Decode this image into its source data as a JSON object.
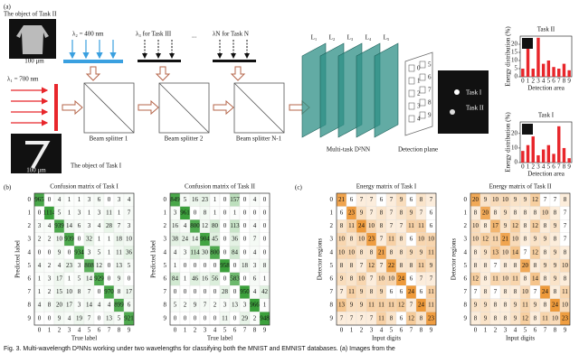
{
  "panel_a": {
    "label": "(a)",
    "object_task2": "The object of Task II",
    "scale2": "100 μm",
    "lambda2": "λ₂ = 400 nm",
    "lambda3": "λ₃ for Task III",
    "ellipsis": "...",
    "lambdaN": "λN for Task N",
    "lambda1": "λ₁ = 700 nm",
    "splitters": [
      "Beam splitter 1",
      "Beam splitter 2",
      "Beam splitter N-1"
    ],
    "object_task1": "The object of Task I",
    "scale1": "100 μm",
    "layers": [
      "L₁",
      "L₂",
      "L₃",
      "L₄",
      "L₅"
    ],
    "network": "Multi-task D²NN",
    "detection_plane": "Detection plane",
    "detector_numbers": [
      "0",
      "1",
      "2",
      "3",
      "4",
      "5",
      "6",
      "7",
      "8",
      "9"
    ],
    "output_labels": [
      "Task I",
      "Task II"
    ]
  },
  "panel_labels": [
    "(b)",
    "(c)"
  ],
  "chart_data": [
    {
      "type": "bar",
      "title": "Task II",
      "xlabel": "Detection area",
      "ylabel": "Energy distribution (%)",
      "categories": [
        "0",
        "1",
        "2",
        "3",
        "4",
        "5",
        "6",
        "7",
        "8",
        "9"
      ],
      "values": [
        5,
        20,
        5,
        24,
        8,
        10,
        6,
        5,
        8,
        4
      ],
      "color": "#e8262b",
      "ylim": [
        0,
        25
      ],
      "yticks": [
        0,
        5,
        10,
        15,
        20
      ]
    },
    {
      "type": "bar",
      "title": "Task I",
      "xlabel": "Detection area",
      "ylabel": "Energy distribution (%)",
      "categories": [
        "0",
        "1",
        "2",
        "3",
        "4",
        "5",
        "6",
        "7",
        "8",
        "9"
      ],
      "values": [
        8,
        12,
        18,
        5,
        9,
        12,
        6,
        25,
        10,
        3
      ],
      "color": "#e8262b",
      "ylim": [
        0,
        28
      ],
      "yticks": [
        0,
        10,
        20
      ]
    },
    {
      "type": "heatmap",
      "title": "Confusion matrix of Task I",
      "xlabel": "True label",
      "ylabel": "Predicted label",
      "categories": [
        "0",
        "1",
        "2",
        "3",
        "4",
        "5",
        "6",
        "7",
        "8",
        "9"
      ],
      "rows": [
        "0",
        "1",
        "2",
        "3",
        "4",
        "5",
        "6",
        "7",
        "8",
        "9"
      ],
      "color": "#3aa03a",
      "values": [
        [
          965,
          0,
          4,
          1,
          1,
          3,
          6,
          0,
          3,
          4
        ],
        [
          0,
          1114,
          5,
          1,
          3,
          1,
          3,
          11,
          1,
          7
        ],
        [
          3,
          4,
          939,
          14,
          6,
          3,
          4,
          28,
          7,
          3
        ],
        [
          2,
          2,
          10,
          939,
          0,
          32,
          1,
          1,
          18,
          10
        ],
        [
          0,
          0,
          9,
          0,
          934,
          3,
          5,
          1,
          11,
          36
        ],
        [
          4,
          2,
          4,
          23,
          3,
          808,
          12,
          0,
          13,
          5
        ],
        [
          1,
          3,
          17,
          1,
          5,
          14,
          929,
          0,
          9,
          0
        ],
        [
          1,
          2,
          15,
          10,
          8,
          7,
          0,
          970,
          8,
          17
        ],
        [
          4,
          8,
          20,
          17,
          3,
          14,
          4,
          4,
          899,
          6
        ],
        [
          0,
          0,
          9,
          4,
          19,
          7,
          0,
          13,
          5,
          921
        ]
      ]
    },
    {
      "type": "heatmap",
      "title": "Confusion matrix of Task II",
      "xlabel": "True label",
      "ylabel": "Predicted label",
      "categories": [
        "0",
        "1",
        "2",
        "3",
        "4",
        "5",
        "6",
        "7",
        "8",
        "9"
      ],
      "rows": [
        "0",
        "1",
        "2",
        "3",
        "4",
        "5",
        "6",
        "7",
        "8",
        "9"
      ],
      "color": "#3aa03a",
      "values": [
        [
          849,
          5,
          16,
          23,
          1,
          0,
          157,
          0,
          4,
          0
        ],
        [
          3,
          961,
          0,
          8,
          1,
          0,
          1,
          0,
          0,
          0
        ],
        [
          16,
          4,
          800,
          12,
          80,
          0,
          113,
          0,
          4,
          0
        ],
        [
          38,
          24,
          14,
          904,
          45,
          0,
          36,
          0,
          7,
          0
        ],
        [
          4,
          3,
          114,
          30,
          800,
          0,
          84,
          0,
          4,
          0
        ],
        [
          1,
          0,
          0,
          0,
          0,
          958,
          0,
          18,
          3,
          8
        ],
        [
          84,
          1,
          46,
          16,
          56,
          0,
          583,
          0,
          6,
          1
        ],
        [
          0,
          0,
          0,
          0,
          0,
          28,
          0,
          950,
          4,
          42
        ],
        [
          5,
          2,
          9,
          7,
          2,
          3,
          13,
          3,
          966,
          1
        ],
        [
          0,
          0,
          0,
          0,
          0,
          11,
          0,
          29,
          2,
          948
        ]
      ]
    },
    {
      "type": "heatmap",
      "title": "Energy matrix of Task I",
      "xlabel": "Input digits",
      "ylabel": "Detector regions",
      "categories": [
        "0",
        "1",
        "2",
        "3",
        "4",
        "5",
        "6",
        "7",
        "8",
        "9"
      ],
      "rows": [
        "0",
        "1",
        "2",
        "3",
        "4",
        "5",
        "6",
        "7",
        "8",
        "9"
      ],
      "color": "#ee9a3a",
      "values": [
        [
          21,
          6,
          7,
          7,
          6,
          7,
          9,
          6,
          8,
          7
        ],
        [
          6,
          23,
          9,
          7,
          8,
          7,
          8,
          9,
          7,
          6
        ],
        [
          8,
          11,
          24,
          10,
          8,
          7,
          7,
          11,
          11,
          6
        ],
        [
          10,
          8,
          10,
          23,
          7,
          11,
          8,
          6,
          10,
          10
        ],
        [
          10,
          10,
          8,
          8,
          21,
          8,
          8,
          9,
          9,
          11
        ],
        [
          8,
          8,
          7,
          12,
          7,
          22,
          8,
          8,
          11,
          9
        ],
        [
          9,
          8,
          10,
          7,
          10,
          10,
          24,
          6,
          7,
          7
        ],
        [
          7,
          11,
          9,
          8,
          9,
          6,
          6,
          24,
          6,
          11
        ],
        [
          13,
          9,
          9,
          11,
          11,
          11,
          12,
          7,
          24,
          11
        ],
        [
          7,
          7,
          7,
          7,
          11,
          8,
          6,
          12,
          8,
          23
        ]
      ]
    },
    {
      "type": "heatmap",
      "title": "Energy matrix of Task II",
      "xlabel": "Input digits",
      "ylabel": "Detector regions",
      "categories": [
        "0",
        "1",
        "2",
        "3",
        "4",
        "5",
        "6",
        "7",
        "8",
        "9"
      ],
      "rows": [
        "0",
        "1",
        "2",
        "3",
        "4",
        "5",
        "6",
        "7",
        "8",
        "9"
      ],
      "color": "#ee9a3a",
      "values": [
        [
          20,
          9,
          10,
          10,
          9,
          9,
          12,
          7,
          7,
          8
        ],
        [
          8,
          20,
          8,
          9,
          8,
          8,
          8,
          10,
          8,
          7
        ],
        [
          10,
          8,
          17,
          9,
          12,
          8,
          12,
          8,
          9,
          7
        ],
        [
          10,
          12,
          11,
          21,
          10,
          8,
          9,
          9,
          8,
          7
        ],
        [
          8,
          9,
          13,
          10,
          14,
          7,
          12,
          8,
          9,
          8
        ],
        [
          8,
          8,
          7,
          8,
          8,
          20,
          8,
          9,
          9,
          10
        ],
        [
          12,
          8,
          11,
          10,
          11,
          8,
          14,
          8,
          9,
          8
        ],
        [
          7,
          8,
          7,
          8,
          8,
          10,
          7,
          24,
          8,
          11
        ],
        [
          9,
          9,
          8,
          8,
          9,
          11,
          9,
          8,
          24,
          10
        ],
        [
          8,
          9,
          8,
          8,
          9,
          12,
          8,
          11,
          10,
          23
        ]
      ]
    }
  ],
  "caption": "Fig. 3. Multi-wavelength D²NNs working under two wavelengths for classifying both the MNIST and EMNIST databases. (a) Images from the"
}
